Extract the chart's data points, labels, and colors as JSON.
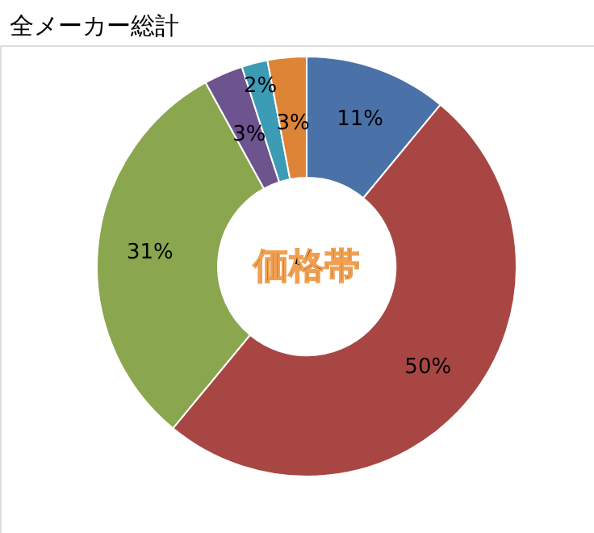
{
  "chart_data": {
    "type": "donut",
    "title": "全メーカー総計",
    "categories": [
      null,
      null,
      null,
      null,
      null,
      null
    ],
    "values": [
      11,
      50,
      31,
      3,
      2,
      3
    ],
    "value_labels": [
      "11%",
      "50%",
      "31%",
      "3%",
      "2%",
      "3%"
    ],
    "colors": [
      "#4a72a8",
      "#a84644",
      "#8aa64e",
      "#6e548f",
      "#3c9bb5",
      "#dd8437"
    ],
    "annotations": [
      "価格帯"
    ]
  }
}
